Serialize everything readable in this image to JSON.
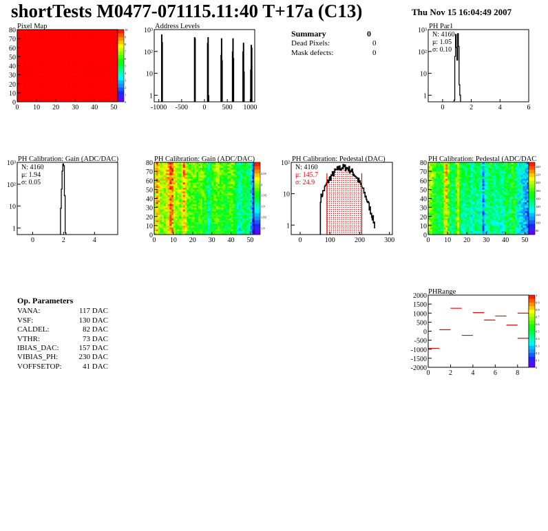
{
  "header": {
    "title": "shortTests M0477-071115.11:40 T+17a (C13)",
    "date": "Thu Nov 15 16:04:49 2007"
  },
  "summary": {
    "title": "Summary",
    "total": "0",
    "rows": [
      {
        "label": "Dead Pixels:",
        "value": "0"
      },
      {
        "label": "Mask defects:",
        "value": "0"
      }
    ]
  },
  "op_parameters": {
    "title": "Op. Parameters",
    "rows": [
      {
        "label": "VANA:",
        "value": "117 DAC"
      },
      {
        "label": "VSF:",
        "value": "130 DAC"
      },
      {
        "label": "CALDEL:",
        "value": "82 DAC"
      },
      {
        "label": "VTHR:",
        "value": "73 DAC"
      },
      {
        "label": "IBIAS_DAC:",
        "value": "157 DAC"
      },
      {
        "label": "VIBIAS_PH:",
        "value": "230 DAC"
      },
      {
        "label": "VOFFSETOP:",
        "value": "41 DAC"
      }
    ]
  },
  "chart_data": [
    {
      "id": "pixel-map",
      "type": "heatmap",
      "title": "Pixel Map",
      "xlim": [
        0,
        52
      ],
      "ylim": [
        0,
        80
      ],
      "zlim": [
        0,
        10
      ],
      "xticks": [
        0,
        10,
        20,
        30,
        40,
        50
      ],
      "yticks": [
        0,
        10,
        20,
        30,
        40,
        50,
        60,
        70,
        80
      ],
      "zticks": [
        0,
        1,
        2,
        3,
        4,
        5,
        6,
        7,
        8,
        9,
        10
      ],
      "uniform_value": 10
    },
    {
      "id": "address-levels",
      "type": "bar",
      "title": "Address Levels",
      "xlim": [
        -1100,
        1100
      ],
      "ylim": [
        0.5,
        1000
      ],
      "log_y": true,
      "xticks": [
        -1000,
        -500,
        0,
        500,
        1000
      ],
      "yticks": [
        1,
        10,
        100,
        1000
      ],
      "bins": [
        [
          -935,
          600
        ],
        [
          -925,
          270
        ],
        [
          -215,
          450
        ],
        [
          -205,
          400
        ],
        [
          70,
          250
        ],
        [
          80,
          450
        ],
        [
          90,
          1
        ],
        [
          365,
          70
        ],
        [
          375,
          400
        ],
        [
          385,
          40
        ],
        [
          615,
          100
        ],
        [
          625,
          400
        ],
        [
          635,
          50
        ],
        [
          845,
          100
        ],
        [
          855,
          250
        ],
        [
          865,
          12
        ],
        [
          1015,
          15
        ],
        [
          1025,
          200
        ],
        [
          1035,
          150
        ]
      ]
    },
    {
      "id": "ph-par1",
      "type": "histogram",
      "title": "PH Par1",
      "xlim": [
        -1,
        6
      ],
      "ylim": [
        0.5,
        1000
      ],
      "log_y": true,
      "xticks": [
        0,
        2,
        4,
        6
      ],
      "yticks": [
        1,
        10,
        100,
        1000
      ],
      "stats": {
        "n": "N: 4160",
        "mean": "μ: 1.05",
        "sigma": "σ: 0.10"
      },
      "bins": [
        [
          0.8,
          0.6
        ],
        [
          0.85,
          60
        ],
        [
          0.9,
          600
        ],
        [
          0.95,
          150
        ],
        [
          1.0,
          40
        ],
        [
          1.05,
          650
        ],
        [
          1.1,
          170
        ],
        [
          1.15,
          3
        ],
        [
          1.2,
          1
        ]
      ],
      "bin_width": 0.05
    },
    {
      "id": "ph-gain",
      "type": "histogram",
      "title": "PH Calibration: Gain (ADC/DAC)",
      "xlim": [
        -1,
        5.5
      ],
      "ylim": [
        0.5,
        1000
      ],
      "log_y": true,
      "xticks": [
        0,
        2,
        4
      ],
      "yticks": [
        1,
        10,
        100,
        1000
      ],
      "stats": {
        "n": "N: 4160",
        "mean": "μ: 1.94",
        "sigma": "σ: 0.05"
      },
      "bins": [
        [
          1.8,
          8
        ],
        [
          1.85,
          60
        ],
        [
          1.9,
          400
        ],
        [
          1.95,
          850
        ],
        [
          2.0,
          700
        ],
        [
          2.05,
          30
        ],
        [
          2.1,
          0.6
        ]
      ],
      "bin_width": 0.05
    },
    {
      "id": "ph-gain-map",
      "type": "heatmap",
      "title": "PH Calibration: Gain (ADC/DAC)",
      "xlim": [
        0,
        52
      ],
      "ylim": [
        0,
        80
      ],
      "zlim": [
        1.77,
        2.1
      ],
      "xticks": [
        0,
        10,
        20,
        30,
        40,
        50
      ],
      "yticks": [
        0,
        10,
        20,
        30,
        40,
        50,
        60,
        70,
        80
      ],
      "zticks": [
        1.8,
        1.85,
        1.9,
        1.95,
        2,
        2.05
      ],
      "column_means": [
        2.02,
        2.06,
        2.03,
        2.0,
        2.01,
        2.0,
        2.02,
        2.03,
        2.07,
        2.06,
        2.02,
        2.0,
        2.0,
        1.99,
        2.02,
        2.05,
        2.02,
        1.98,
        1.97,
        1.97,
        1.98,
        1.97,
        1.96,
        1.97,
        1.98,
        1.97,
        1.96,
        1.95,
        1.9,
        1.95,
        1.96,
        1.97,
        1.98,
        1.97,
        1.96,
        1.97,
        1.96,
        1.95,
        1.96,
        1.97,
        1.98,
        1.96,
        1.95,
        1.93,
        1.9,
        1.92,
        1.93,
        1.94,
        1.93,
        1.92,
        1.88,
        1.82
      ]
    },
    {
      "id": "ph-pedestal",
      "type": "histogram",
      "title": "PH Calibration: Pedestal (DAC)",
      "xlim": [
        -30,
        310
      ],
      "ylim": [
        0.5,
        100
      ],
      "log_y": true,
      "xticks": [
        0,
        100,
        200,
        300
      ],
      "yticks": [
        1,
        10,
        100
      ],
      "stats": {
        "n": "N: 4160",
        "mean": "μ: 145.7",
        "sigma": "σ: 24.9"
      },
      "fit_range": [
        90,
        207
      ],
      "peak": {
        "mean": 145,
        "height": 70,
        "sigma": 36
      },
      "range": [
        68,
        250
      ]
    },
    {
      "id": "ph-pedestal-map",
      "type": "heatmap",
      "title": "PH Calibration: Pedestal (ADC/DAC",
      "xlim": [
        0,
        52
      ],
      "ylim": [
        0,
        80
      ],
      "zlim": [
        70,
        250
      ],
      "xticks": [
        0,
        10,
        20,
        30,
        40,
        50
      ],
      "yticks": [
        0,
        10,
        20,
        30,
        40,
        50,
        60,
        70,
        80
      ],
      "zticks": [
        80,
        100,
        120,
        140,
        160,
        180,
        200,
        220,
        240
      ],
      "column_means": [
        195,
        190,
        180,
        170,
        165,
        160,
        165,
        170,
        205,
        215,
        185,
        160,
        150,
        160,
        180,
        200,
        170,
        150,
        145,
        150,
        160,
        150,
        140,
        145,
        155,
        150,
        145,
        140,
        110,
        140,
        145,
        150,
        160,
        150,
        140,
        145,
        150,
        145,
        140,
        150,
        165,
        160,
        155,
        175,
        170,
        150,
        140,
        135,
        130,
        125,
        120,
        110
      ]
    },
    {
      "id": "ph-range",
      "type": "segments",
      "title": "PHRange",
      "xlim": [
        0,
        9
      ],
      "ylim": [
        -2000,
        2000
      ],
      "zlim": [
        0,
        1
      ],
      "xticks": [
        0,
        2,
        4,
        6,
        8
      ],
      "yticks": [
        -2000,
        -1500,
        -1000,
        -500,
        0,
        500,
        1000,
        1500,
        2000
      ],
      "zticks": [
        0,
        0.1,
        0.2,
        0.3,
        0.4,
        0.5,
        0.6,
        0.7,
        0.8,
        0.9,
        1
      ],
      "segments": [
        [
          0,
          1,
          -950
        ],
        [
          1,
          2,
          80
        ],
        [
          2,
          3,
          1270
        ],
        [
          3,
          4,
          -230
        ],
        [
          4,
          5,
          1030
        ],
        [
          5,
          6,
          620
        ],
        [
          6,
          7,
          840
        ],
        [
          7,
          8,
          340
        ],
        [
          8,
          9,
          1000
        ],
        [
          8,
          9,
          -390
        ]
      ]
    }
  ]
}
